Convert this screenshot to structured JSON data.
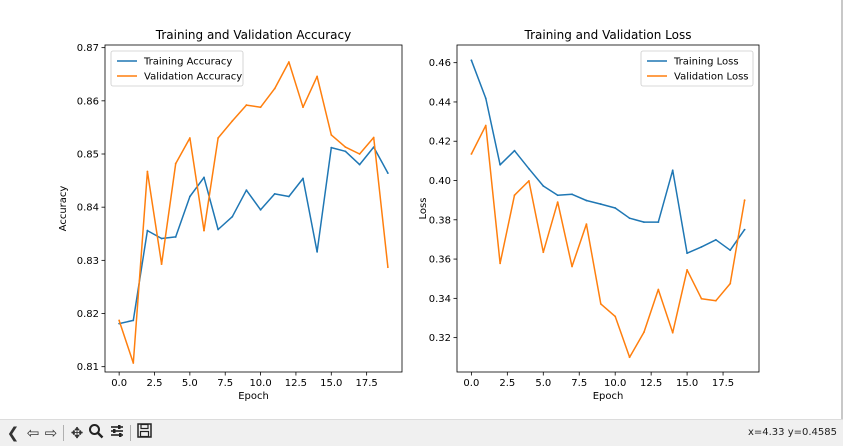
{
  "chart_data": [
    {
      "type": "line",
      "title": "Training and Validation Accuracy",
      "xlabel": "Epoch",
      "ylabel": "Accuracy",
      "xlim": [
        -1,
        20
      ],
      "ylim": [
        0.809,
        0.8705
      ],
      "xticks": [
        0.0,
        2.5,
        5.0,
        7.5,
        10.0,
        12.5,
        15.0,
        17.5
      ],
      "xtick_labels": [
        "0.0",
        "2.5",
        "5.0",
        "7.5",
        "10.0",
        "12.5",
        "15.0",
        "17.5"
      ],
      "yticks": [
        0.81,
        0.82,
        0.83,
        0.84,
        0.85,
        0.86,
        0.87
      ],
      "ytick_labels": [
        "0.81",
        "0.82",
        "0.83",
        "0.84",
        "0.85",
        "0.86",
        "0.87"
      ],
      "legend_position": "top-left",
      "x": [
        0,
        1,
        2,
        3,
        4,
        5,
        6,
        7,
        8,
        9,
        10,
        11,
        12,
        13,
        14,
        15,
        16,
        17,
        18,
        19
      ],
      "series": [
        {
          "name": "Training Accuracy",
          "color": "#1f77b4",
          "values": [
            0.8181,
            0.8187,
            0.8356,
            0.8341,
            0.8344,
            0.842,
            0.8456,
            0.8358,
            0.8382,
            0.8432,
            0.8395,
            0.8425,
            0.842,
            0.8454,
            0.8316,
            0.8512,
            0.8505,
            0.848,
            0.8513,
            0.8464
          ]
        },
        {
          "name": "Validation Accuracy",
          "color": "#ff7f0e",
          "values": [
            0.8187,
            0.8107,
            0.8467,
            0.8293,
            0.8482,
            0.853,
            0.8356,
            0.853,
            0.8562,
            0.8592,
            0.8588,
            0.8623,
            0.8673,
            0.8588,
            0.8646,
            0.8536,
            0.8513,
            0.85,
            0.8531,
            0.8287
          ]
        }
      ]
    },
    {
      "type": "line",
      "title": "Training and Validation Loss",
      "xlabel": "Epoch",
      "ylabel": "Loss",
      "xlim": [
        -1,
        20
      ],
      "ylim": [
        0.3025,
        0.469
      ],
      "xticks": [
        0.0,
        2.5,
        5.0,
        7.5,
        10.0,
        12.5,
        15.0,
        17.5
      ],
      "xtick_labels": [
        "0.0",
        "2.5",
        "5.0",
        "7.5",
        "10.0",
        "12.5",
        "15.0",
        "17.5"
      ],
      "yticks": [
        0.32,
        0.34,
        0.36,
        0.38,
        0.4,
        0.42,
        0.44,
        0.46
      ],
      "ytick_labels": [
        "0.32",
        "0.34",
        "0.36",
        "0.38",
        "0.40",
        "0.42",
        "0.44",
        "0.46"
      ],
      "legend_position": "top-right",
      "x": [
        0,
        1,
        2,
        3,
        4,
        5,
        6,
        7,
        8,
        9,
        10,
        11,
        12,
        13,
        14,
        15,
        16,
        17,
        18,
        19
      ],
      "series": [
        {
          "name": "Training Loss",
          "color": "#1f77b4",
          "values": [
            0.4612,
            0.4418,
            0.408,
            0.4152,
            0.406,
            0.3972,
            0.3925,
            0.393,
            0.3898,
            0.388,
            0.386,
            0.3808,
            0.3788,
            0.3788,
            0.4052,
            0.363,
            0.3662,
            0.3698,
            0.3645,
            0.375
          ]
        },
        {
          "name": "Validation Loss",
          "color": "#ff7f0e",
          "values": [
            0.4135,
            0.428,
            0.3578,
            0.3925,
            0.3998,
            0.3635,
            0.389,
            0.3562,
            0.3778,
            0.3372,
            0.3308,
            0.31,
            0.3228,
            0.3445,
            0.3225,
            0.3545,
            0.3398,
            0.3388,
            0.3475,
            0.39
          ]
        }
      ]
    }
  ],
  "toolbar": {
    "home_icon": "home-icon",
    "back_icon": "back-arrow-icon",
    "forward_icon": "forward-arrow-icon",
    "pan_icon": "pan-move-icon",
    "zoom_icon": "zoom-magnifier-icon",
    "configure_icon": "configure-sliders-icon",
    "save_icon": "save-disk-icon",
    "coordinates": "x=4.33 y=0.4585"
  }
}
